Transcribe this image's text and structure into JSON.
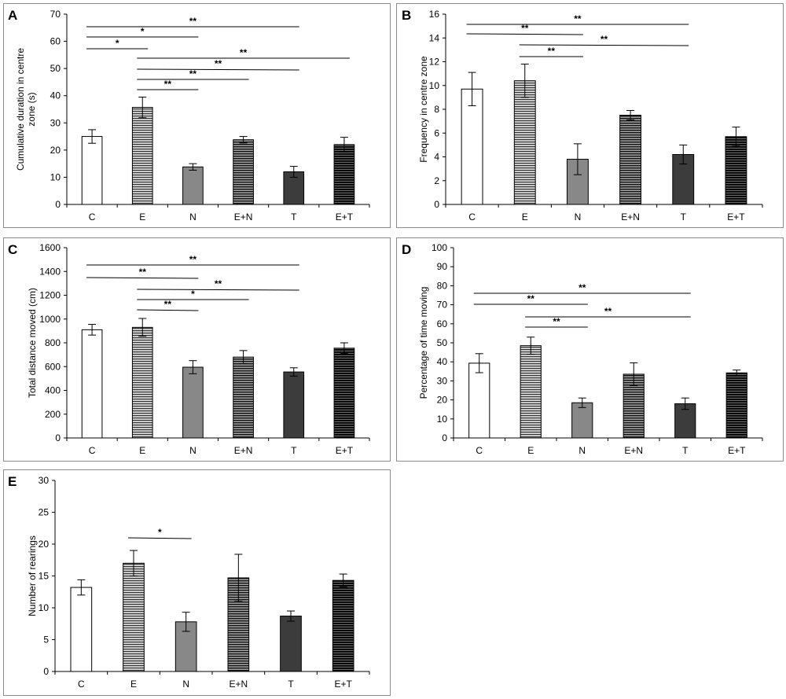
{
  "chart_data": [
    {
      "id": "A",
      "panel_label": "A",
      "type": "bar",
      "categories": [
        "C",
        "E",
        "N",
        "E+N",
        "T",
        "E+T"
      ],
      "values": [
        25,
        35.7,
        13.8,
        23.8,
        12,
        22
      ],
      "errors": [
        2.5,
        3.8,
        1.2,
        1.2,
        2,
        2.7
      ],
      "ylim": [
        0,
        70
      ],
      "yticks": [
        0,
        10,
        20,
        30,
        40,
        50,
        60,
        70
      ],
      "ylabel": "Cumulative duration in centre zone (s)",
      "ylabel_lines": [
        "Cumulative duration in centre",
        "zone (s)"
      ],
      "brackets": [
        {
          "from": 0,
          "to": 4,
          "text": "**"
        },
        {
          "from": 0,
          "to": 2,
          "text": "*"
        },
        {
          "from": 0,
          "to": 1,
          "text": "*"
        },
        {
          "from": 1,
          "to": 5,
          "text": "**"
        },
        {
          "from": 1,
          "to": 4,
          "text": "**"
        },
        {
          "from": 1,
          "to": 3,
          "text": "**"
        },
        {
          "from": 1,
          "to": 2,
          "text": "**"
        }
      ]
    },
    {
      "id": "B",
      "panel_label": "B",
      "type": "bar",
      "categories": [
        "C",
        "E",
        "N",
        "E+N",
        "T",
        "E+T"
      ],
      "values": [
        9.7,
        10.4,
        3.8,
        7.5,
        4.2,
        5.7
      ],
      "errors": [
        1.4,
        1.4,
        1.3,
        0.4,
        0.8,
        0.8
      ],
      "ylim": [
        0,
        16
      ],
      "yticks": [
        0,
        2,
        4,
        6,
        8,
        10,
        12,
        14,
        16
      ],
      "ylabel": "Frequency in centre zone",
      "ylabel_lines": [
        "Frequency in centre zone"
      ],
      "brackets": [
        {
          "from": 0,
          "to": 4,
          "text": "**"
        },
        {
          "from": 0,
          "to": 2,
          "text": "**"
        },
        {
          "from": 1,
          "to": 4,
          "text": "**"
        },
        {
          "from": 1,
          "to": 2,
          "text": "**"
        }
      ]
    },
    {
      "id": "C",
      "panel_label": "C",
      "type": "bar",
      "categories": [
        "C",
        "E",
        "N",
        "E+N",
        "T",
        "E+T"
      ],
      "values": [
        910,
        930,
        595,
        680,
        555,
        755
      ],
      "errors": [
        45,
        75,
        55,
        55,
        35,
        45
      ],
      "ylim": [
        0,
        1600
      ],
      "yticks": [
        0,
        200,
        400,
        600,
        800,
        1000,
        1200,
        1400,
        1600
      ],
      "ylabel": "Total distance moved (cm)",
      "ylabel_lines": [
        "Total distance moved (cm)"
      ],
      "brackets": [
        {
          "from": 0,
          "to": 4,
          "text": "**"
        },
        {
          "from": 0,
          "to": 2,
          "text": "**"
        },
        {
          "from": 1,
          "to": 4,
          "text": "**"
        },
        {
          "from": 1,
          "to": 3,
          "text": "*"
        },
        {
          "from": 1,
          "to": 2,
          "text": "**"
        }
      ]
    },
    {
      "id": "D",
      "panel_label": "D",
      "type": "bar",
      "categories": [
        "C",
        "E",
        "N",
        "E+N",
        "T",
        "E+T"
      ],
      "values": [
        39.3,
        48.5,
        18.5,
        33.5,
        18,
        34.2
      ],
      "errors": [
        5,
        4.5,
        2.5,
        6,
        3,
        1.5
      ],
      "ylim": [
        0,
        100
      ],
      "yticks": [
        0,
        10,
        20,
        30,
        40,
        50,
        60,
        70,
        80,
        90,
        100
      ],
      "ylabel": "Percentage of time moving",
      "ylabel_lines": [
        "Percentage of time moving"
      ],
      "brackets": [
        {
          "from": 0,
          "to": 4,
          "text": "**"
        },
        {
          "from": 0,
          "to": 2,
          "text": "**"
        },
        {
          "from": 1,
          "to": 4,
          "text": "**"
        },
        {
          "from": 1,
          "to": 2,
          "text": "**"
        }
      ]
    },
    {
      "id": "E",
      "panel_label": "E",
      "type": "bar",
      "categories": [
        "C",
        "E",
        "N",
        "E+N",
        "T",
        "E+T"
      ],
      "values": [
        13.2,
        17,
        7.8,
        14.7,
        8.7,
        14.3
      ],
      "errors": [
        1.2,
        2,
        1.5,
        3.7,
        0.8,
        1
      ],
      "ylim": [
        0,
        30
      ],
      "yticks": [
        0,
        5,
        10,
        15,
        20,
        25,
        30
      ],
      "ylabel": "Number of rearings",
      "ylabel_lines": [
        "Number of rearings"
      ],
      "brackets": [
        {
          "from": 1,
          "to": 2,
          "text": "*"
        }
      ]
    }
  ],
  "colors": {
    "frame": "#8c8c8c",
    "bar_C": "#ffffff",
    "bar_E": "#c8c8c8",
    "bar_N": "#888888",
    "bar_EN": "#787878",
    "bar_T": "#3c3c3c",
    "bar_ET": "#2a2a2a",
    "stripe": "#000000"
  }
}
